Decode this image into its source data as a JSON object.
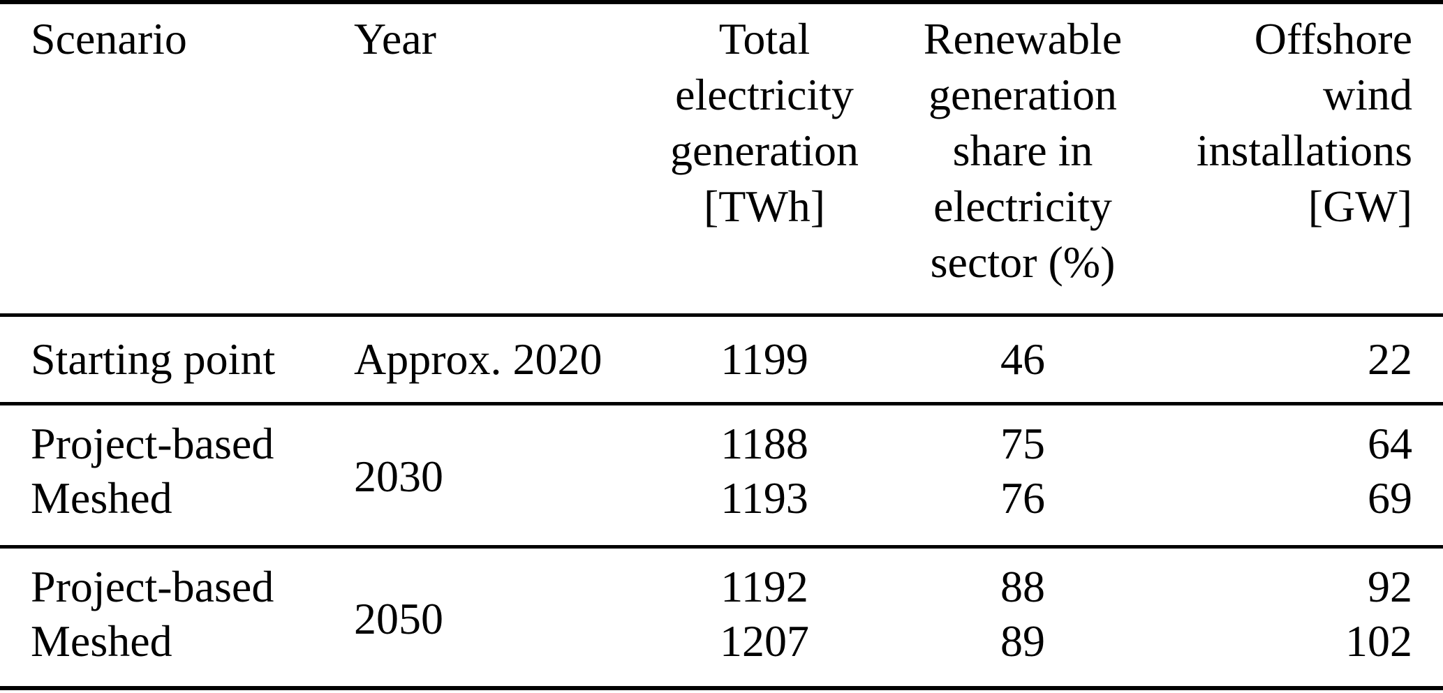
{
  "page": {
    "background": "#ffffff",
    "text_color": "#000000",
    "rule_color": "#000000"
  },
  "table": {
    "headers": {
      "scenario": "Scenario",
      "year": "Year",
      "total_generation": "Total\nelectricity\ngeneration\n[TWh]",
      "renewable_share": "Renewable\ngeneration\nshare in\nelectricity\nsector (%)",
      "offshore_wind": "Offshore\nwind\ninstallations\n[GW]"
    },
    "sections": [
      {
        "year": "Approx. 2020",
        "rows": [
          {
            "scenario": "Starting point",
            "total_generation": "1199",
            "renewable_share": "46",
            "offshore_wind": "22"
          }
        ]
      },
      {
        "year": "2030",
        "rows": [
          {
            "scenario": "Project-based",
            "total_generation": "1188",
            "renewable_share": "75",
            "offshore_wind": "64"
          },
          {
            "scenario": "Meshed",
            "total_generation": "1193",
            "renewable_share": "76",
            "offshore_wind": "69"
          }
        ]
      },
      {
        "year": "2050",
        "rows": [
          {
            "scenario": "Project-based",
            "total_generation": "1192",
            "renewable_share": "88",
            "offshore_wind": "92"
          },
          {
            "scenario": "Meshed",
            "total_generation": "1207",
            "renewable_share": "89",
            "offshore_wind": "102"
          }
        ]
      }
    ]
  }
}
